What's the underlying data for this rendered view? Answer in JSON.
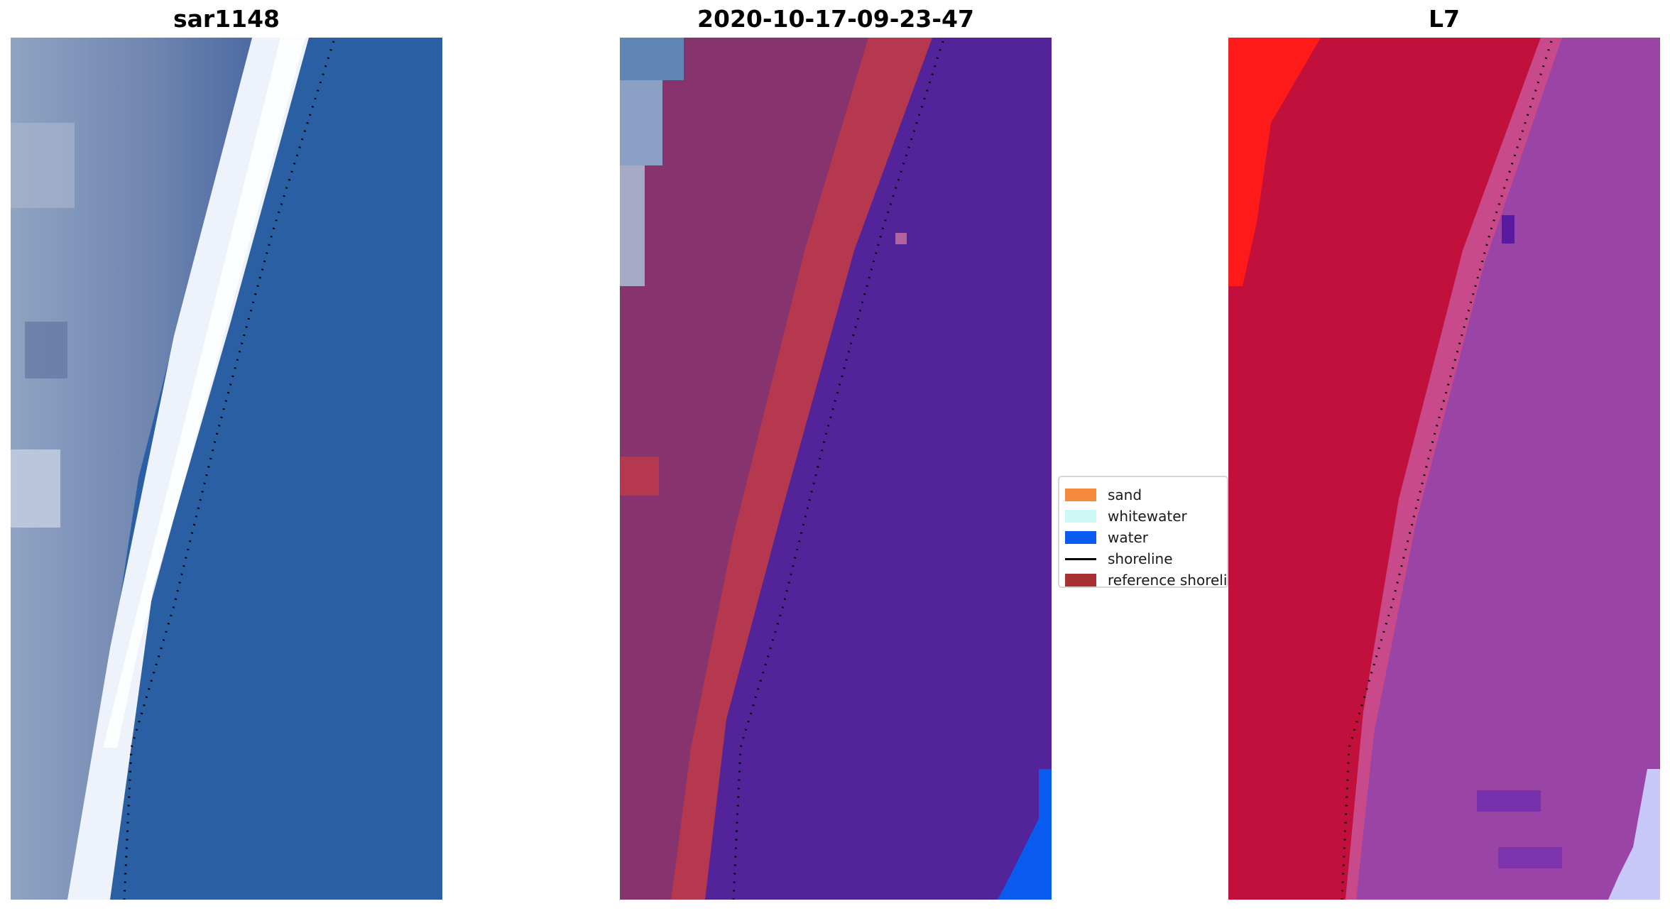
{
  "panels": [
    {
      "title": "sar1148"
    },
    {
      "title": "2020-10-17-09-23-47"
    },
    {
      "title": "L7"
    }
  ],
  "legend": {
    "items": [
      {
        "label": "sand",
        "color": "#f58a3f"
      },
      {
        "label": "whitewater",
        "color": "#cdf7f5"
      },
      {
        "label": "water",
        "color": "#0a5bf0"
      },
      {
        "label": "shoreline",
        "color": "#000000"
      },
      {
        "label": "reference shoreline",
        "color": "#a83232"
      }
    ]
  },
  "colors": {
    "ocean_rgb": "#2a5fa3",
    "whitewater_rgb": "#e8f0fa",
    "sand_class": "#b5384e",
    "land_class": "#86336e",
    "water_class": "#522399",
    "false_color_land": "#c2103c",
    "false_color_water": "#9a45a6"
  }
}
